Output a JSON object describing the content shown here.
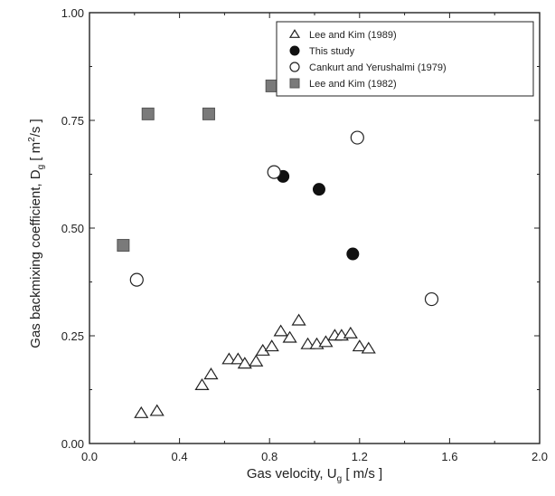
{
  "chart_data": {
    "type": "scatter",
    "x_label_parts": {
      "main": "Gas velocity, U",
      "sub": "g",
      "unit": " [ m/s ]"
    },
    "y_label_parts": {
      "main": "Gas backmixing coefficient, D",
      "sub": "g",
      "unit_open": " [ m",
      "unit_sup": "2",
      "unit_close": "/s ]"
    },
    "xlim": [
      0.0,
      2.0
    ],
    "ylim": [
      0.0,
      1.0
    ],
    "x_ticks": [
      "0.0",
      "0.4",
      "0.8",
      "1.2",
      "1.6",
      "2.0"
    ],
    "y_ticks": [
      "0.00",
      "0.25",
      "0.50",
      "0.75",
      "1.00"
    ],
    "grid": false,
    "legend_position": "top-right",
    "series": [
      {
        "name": "Lee and Kim (1989)",
        "marker": "open-triangle",
        "color": "#222222",
        "points": [
          [
            0.23,
            0.07
          ],
          [
            0.3,
            0.075
          ],
          [
            0.5,
            0.135
          ],
          [
            0.54,
            0.16
          ],
          [
            0.62,
            0.195
          ],
          [
            0.66,
            0.195
          ],
          [
            0.69,
            0.185
          ],
          [
            0.74,
            0.19
          ],
          [
            0.77,
            0.215
          ],
          [
            0.81,
            0.225
          ],
          [
            0.85,
            0.26
          ],
          [
            0.89,
            0.245
          ],
          [
            0.93,
            0.285
          ],
          [
            0.97,
            0.23
          ],
          [
            1.01,
            0.23
          ],
          [
            1.05,
            0.235
          ],
          [
            1.09,
            0.25
          ],
          [
            1.12,
            0.25
          ],
          [
            1.16,
            0.255
          ],
          [
            1.2,
            0.225
          ],
          [
            1.24,
            0.22
          ]
        ]
      },
      {
        "name": "This study",
        "marker": "filled-circle",
        "color": "#111111",
        "points": [
          [
            0.86,
            0.62
          ],
          [
            1.02,
            0.59
          ],
          [
            1.17,
            0.44
          ]
        ]
      },
      {
        "name": "Cankurt and Yerushalmi (1979)",
        "marker": "open-circle",
        "color": "#222222",
        "points": [
          [
            0.21,
            0.38
          ],
          [
            0.82,
            0.63
          ],
          [
            1.19,
            0.71
          ],
          [
            1.52,
            0.335
          ]
        ]
      },
      {
        "name": "Lee and Kim (1982)",
        "marker": "filled-square",
        "color": "#7a7a7a",
        "points": [
          [
            0.15,
            0.46
          ],
          [
            0.26,
            0.765
          ],
          [
            0.53,
            0.765
          ],
          [
            0.81,
            0.83
          ]
        ]
      }
    ]
  }
}
